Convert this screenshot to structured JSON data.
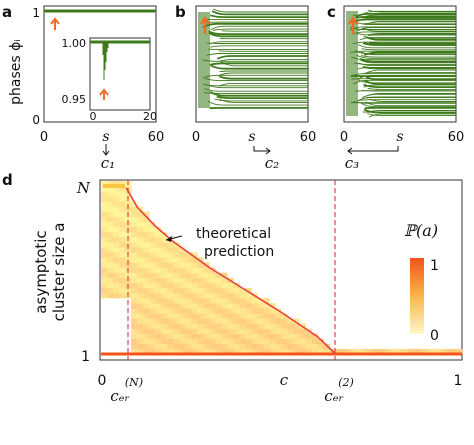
{
  "panels": {
    "a": {
      "label": "a",
      "ylabel": "phases ϕᵢ",
      "y_top": "1",
      "y_bottom": "0",
      "x_ticks": [
        "0",
        "60"
      ],
      "xvar": "s",
      "arrow_target": "c₁",
      "inset": {
        "y_top": "1.00",
        "y_bottom": "0.95",
        "x_ticks": [
          "0",
          "20"
        ]
      }
    },
    "b": {
      "label": "b",
      "x_ticks": [
        "0",
        "60"
      ],
      "xvar": "s",
      "arrow_target": "c₂"
    },
    "c": {
      "label": "c",
      "x_ticks": [
        "0",
        "60"
      ],
      "xvar": "s",
      "arrow_target": "c₃"
    },
    "d": {
      "label": "d",
      "ylabel_line1": "asymptotic",
      "ylabel_line2": "cluster size a",
      "y_top": "N",
      "y_bottom": "1",
      "x_ticks": [
        "0",
        "1"
      ],
      "xvar": "c",
      "crit_N": "cₑᵣ",
      "crit_N_sup": "(N)",
      "crit_2": "cₑᵣ",
      "crit_2_sup": "(2)",
      "annotation_line1": "theoretical",
      "annotation_line2": "prediction",
      "colorbar_label": "ℙ(a)",
      "colorbar_max": "1",
      "colorbar_min": "0"
    }
  },
  "colors": {
    "trace": "#3d7a1a",
    "highlight": "#f06a2a",
    "theory": "#e5404a",
    "heat_low": "#fff6c8",
    "heat_high": "#f2541b"
  },
  "chart_data": [
    {
      "type": "line",
      "panel": "a",
      "xlabel": "s",
      "xlim": [
        0,
        60
      ],
      "ylim": [
        0,
        1
      ],
      "description_series": "phases converge to a single cluster near 1"
    },
    {
      "type": "line",
      "panel": "b",
      "xlabel": "s",
      "xlim": [
        0,
        60
      ],
      "ylim": [
        0,
        1
      ]
    },
    {
      "type": "line",
      "panel": "c",
      "xlabel": "s",
      "xlim": [
        0,
        60
      ],
      "ylim": [
        0,
        1
      ]
    },
    {
      "type": "heatmap",
      "panel": "d",
      "xlabel": "c",
      "ylabel": "asymptotic cluster size a",
      "xlim": [
        0,
        1
      ],
      "ylim": [
        "1",
        "N"
      ],
      "critical_lines": [
        {
          "label": "c_cr^(N)",
          "x": 0.07
        },
        {
          "label": "c_cr^(2)",
          "x": 0.65
        }
      ],
      "theory_curve": {
        "name": "theoretical prediction",
        "x": [
          0.07,
          0.1,
          0.15,
          0.2,
          0.3,
          0.4,
          0.5,
          0.6,
          0.65
        ],
        "y_frac": [
          0.96,
          0.85,
          0.74,
          0.65,
          0.5,
          0.37,
          0.24,
          0.1,
          0.0
        ]
      },
      "colorbar": {
        "label": "P(a)",
        "min": 0,
        "max": 1
      }
    }
  ]
}
